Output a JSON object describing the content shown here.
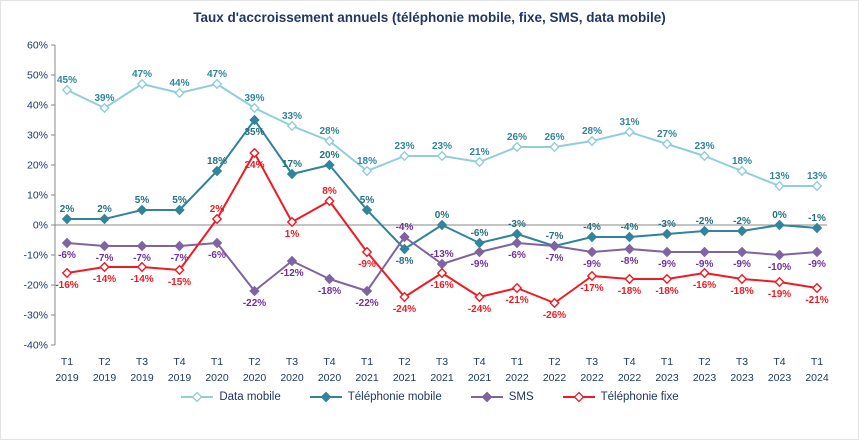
{
  "chart_data": {
    "type": "line",
    "title": "Taux d'accroissement annuels (téléphonie mobile, fixe, SMS, data mobile)",
    "x_categories": [
      [
        "T1",
        "2019"
      ],
      [
        "T2",
        "2019"
      ],
      [
        "T3",
        "2019"
      ],
      [
        "T4",
        "2019"
      ],
      [
        "T1",
        "2020"
      ],
      [
        "T2",
        "2020"
      ],
      [
        "T3",
        "2020"
      ],
      [
        "T4",
        "2020"
      ],
      [
        "T1",
        "2021"
      ],
      [
        "T2",
        "2021"
      ],
      [
        "T3",
        "2021"
      ],
      [
        "T4",
        "2021"
      ],
      [
        "T1",
        "2022"
      ],
      [
        "T2",
        "2022"
      ],
      [
        "T3",
        "2022"
      ],
      [
        "T4",
        "2022"
      ],
      [
        "T1",
        "2023"
      ],
      [
        "T2",
        "2023"
      ],
      [
        "T3",
        "2023"
      ],
      [
        "T4",
        "2023"
      ],
      [
        "T1",
        "2024"
      ]
    ],
    "ylim": [
      -40,
      60
    ],
    "y_tick_step": 10,
    "y_tick_suffix": "%",
    "grid": "off",
    "legend_position": "bottom",
    "axis_color": "#898989",
    "text_color": "#1F3864",
    "series": [
      {
        "name": "Data mobile",
        "color": "#92CDDC",
        "label_color": "#31859B",
        "marker": "diamond-hollow",
        "values": [
          45,
          39,
          47,
          44,
          47,
          39,
          33,
          28,
          18,
          23,
          23,
          21,
          26,
          26,
          28,
          31,
          27,
          23,
          18,
          13,
          13
        ]
      },
      {
        "name": "Téléphonie mobile",
        "color": "#31849B",
        "label_color": "#26707F",
        "marker": "diamond-solid",
        "values": [
          2,
          2,
          5,
          5,
          18,
          35,
          17,
          20,
          5,
          -8,
          0,
          -6,
          -3,
          -7,
          -4,
          -4,
          -3,
          -2,
          -2,
          0,
          -1
        ]
      },
      {
        "name": "SMS",
        "color": "#8064A2",
        "label_color": "#7030A0",
        "marker": "diamond-solid",
        "values": [
          -6,
          -7,
          -7,
          -7,
          -6,
          -22,
          -12,
          -18,
          -22,
          -4,
          -13,
          -9,
          -6,
          -7,
          -9,
          -8,
          -9,
          -9,
          -9,
          -10,
          -9
        ]
      },
      {
        "name": "Téléphonie fixe",
        "color": "#ED1C24",
        "label_color": "#ED1C24",
        "marker": "diamond-hollow",
        "values": [
          -16,
          -14,
          -14,
          -15,
          2,
          24,
          1,
          8,
          -9,
          -24,
          -16,
          -24,
          -21,
          -26,
          -17,
          -18,
          -18,
          -16,
          -18,
          -19,
          -21
        ]
      }
    ]
  }
}
